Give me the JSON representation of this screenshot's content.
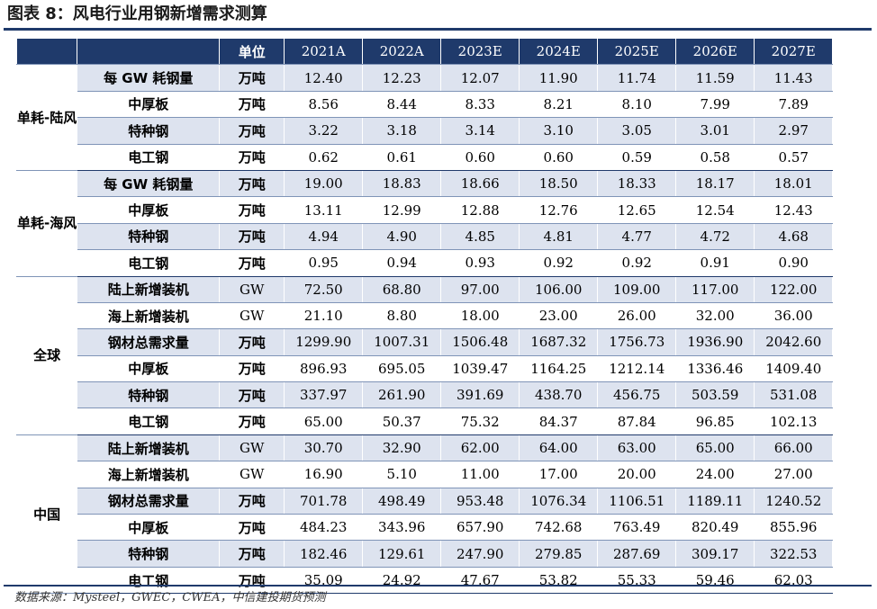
{
  "figure_title": "图表 8：风电行业用钢新增需求测算",
  "header": {
    "unit_label": "单位",
    "years": [
      "2021A",
      "2022A",
      "2023E",
      "2024E",
      "2025E",
      "2026E",
      "2027E"
    ]
  },
  "groups": [
    {
      "name": "单耗-陆风",
      "rows": [
        {
          "item": "每 GW 耗钢量",
          "unit": "万吨",
          "values": [
            "12.40",
            "12.23",
            "12.07",
            "11.90",
            "11.74",
            "11.59",
            "11.43"
          ]
        },
        {
          "item": "中厚板",
          "unit": "万吨",
          "values": [
            "8.56",
            "8.44",
            "8.33",
            "8.21",
            "8.10",
            "7.99",
            "7.89"
          ]
        },
        {
          "item": "特种钢",
          "unit": "万吨",
          "values": [
            "3.22",
            "3.18",
            "3.14",
            "3.10",
            "3.05",
            "3.01",
            "2.97"
          ]
        },
        {
          "item": "电工钢",
          "unit": "万吨",
          "values": [
            "0.62",
            "0.61",
            "0.60",
            "0.60",
            "0.59",
            "0.58",
            "0.57"
          ]
        }
      ]
    },
    {
      "name": "单耗-海风",
      "rows": [
        {
          "item": "每 GW 耗钢量",
          "unit": "万吨",
          "values": [
            "19.00",
            "18.83",
            "18.66",
            "18.50",
            "18.33",
            "18.17",
            "18.01"
          ]
        },
        {
          "item": "中厚板",
          "unit": "万吨",
          "values": [
            "13.11",
            "12.99",
            "12.88",
            "12.76",
            "12.65",
            "12.54",
            "12.43"
          ]
        },
        {
          "item": "特种钢",
          "unit": "万吨",
          "values": [
            "4.94",
            "4.90",
            "4.85",
            "4.81",
            "4.77",
            "4.72",
            "4.68"
          ]
        },
        {
          "item": "电工钢",
          "unit": "万吨",
          "values": [
            "0.95",
            "0.94",
            "0.93",
            "0.92",
            "0.92",
            "0.91",
            "0.90"
          ]
        }
      ]
    },
    {
      "name": "全球",
      "rows": [
        {
          "item": "陆上新增装机",
          "unit": "GW",
          "values": [
            "72.50",
            "68.80",
            "97.00",
            "106.00",
            "109.00",
            "117.00",
            "122.00"
          ]
        },
        {
          "item": "海上新增装机",
          "unit": "GW",
          "values": [
            "21.10",
            "8.80",
            "18.00",
            "23.00",
            "26.00",
            "32.00",
            "36.00"
          ]
        },
        {
          "item": "钢材总需求量",
          "unit": "万吨",
          "values": [
            "1299.90",
            "1007.31",
            "1506.48",
            "1687.32",
            "1756.73",
            "1936.90",
            "2042.60"
          ]
        },
        {
          "item": "中厚板",
          "unit": "万吨",
          "values": [
            "896.93",
            "695.05",
            "1039.47",
            "1164.25",
            "1212.14",
            "1336.46",
            "1409.40"
          ]
        },
        {
          "item": "特种钢",
          "unit": "万吨",
          "values": [
            "337.97",
            "261.90",
            "391.69",
            "438.70",
            "456.75",
            "503.59",
            "531.08"
          ]
        },
        {
          "item": "电工钢",
          "unit": "万吨",
          "values": [
            "65.00",
            "50.37",
            "75.32",
            "84.37",
            "87.84",
            "96.85",
            "102.13"
          ]
        }
      ]
    },
    {
      "name": "中国",
      "rows": [
        {
          "item": "陆上新增装机",
          "unit": "GW",
          "values": [
            "30.70",
            "32.90",
            "62.00",
            "64.00",
            "63.00",
            "65.00",
            "66.00"
          ]
        },
        {
          "item": "海上新增装机",
          "unit": "GW",
          "values": [
            "16.90",
            "5.10",
            "11.00",
            "17.00",
            "20.00",
            "24.00",
            "27.00"
          ]
        },
        {
          "item": "钢材总需求量",
          "unit": "万吨",
          "values": [
            "701.78",
            "498.49",
            "953.48",
            "1076.34",
            "1106.51",
            "1189.11",
            "1240.52"
          ]
        },
        {
          "item": "中厚板",
          "unit": "万吨",
          "values": [
            "484.23",
            "343.96",
            "657.90",
            "742.68",
            "763.49",
            "820.49",
            "855.96"
          ]
        },
        {
          "item": "特种钢",
          "unit": "万吨",
          "values": [
            "182.46",
            "129.61",
            "247.90",
            "279.85",
            "287.69",
            "309.17",
            "322.53"
          ]
        },
        {
          "item": "电工钢",
          "unit": "万吨",
          "values": [
            "35.09",
            "24.92",
            "47.67",
            "53.82",
            "55.33",
            "59.46",
            "62.03"
          ]
        }
      ]
    }
  ],
  "source": "数据来源：Mysteel，GWEC，CWEA，中信建投期货预测",
  "colors": {
    "header_bg": "#1f3a6b",
    "band_bg": "#dde3ef"
  }
}
